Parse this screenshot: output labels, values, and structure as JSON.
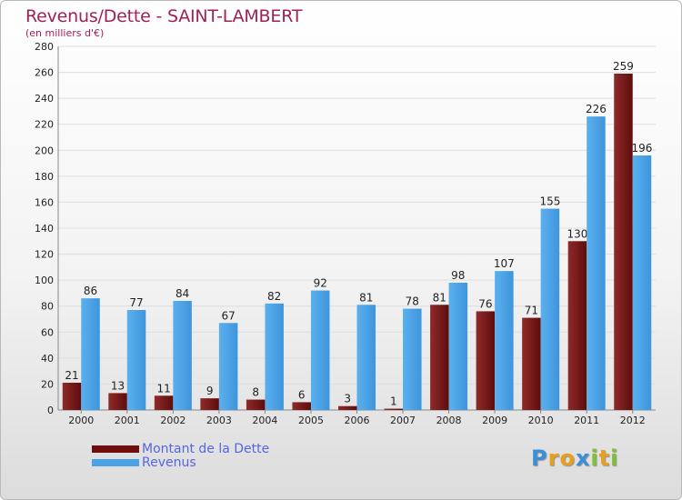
{
  "header": {
    "title": "Revenus/Dette - SAINT-LAMBERT",
    "subtitle": "(en milliers d'€)"
  },
  "chart_data": {
    "type": "bar",
    "title": "Revenus/Dette - SAINT-LAMBERT",
    "subtitle": "(en milliers d'€)",
    "categories": [
      "2000",
      "2001",
      "2002",
      "2003",
      "2004",
      "2005",
      "2006",
      "2007",
      "2008",
      "2009",
      "2010",
      "2011",
      "2012"
    ],
    "series": [
      {
        "name": "Montant de la Dette",
        "color": "#7a1c1c",
        "values": [
          21,
          13,
          11,
          9,
          8,
          6,
          3,
          1,
          81,
          76,
          71,
          130,
          259
        ]
      },
      {
        "name": "Revenus",
        "color": "#4aa3e6",
        "values": [
          86,
          77,
          84,
          67,
          82,
          92,
          81,
          78,
          98,
          107,
          155,
          226,
          196
        ]
      }
    ],
    "ylim": [
      0,
      280
    ],
    "yticks": [
      0,
      20,
      40,
      60,
      80,
      100,
      120,
      140,
      160,
      180,
      200,
      220,
      240,
      260,
      280
    ],
    "grid": true,
    "legend_position": "bottom-left"
  },
  "legend": {
    "items": [
      {
        "label": "Montant de la Dette",
        "color": "#6e0f0f"
      },
      {
        "label": "Revenus",
        "color": "#4aa3e6"
      }
    ]
  },
  "logo": {
    "letters": [
      "P",
      "r",
      "o",
      "x",
      "i",
      "t",
      "i"
    ],
    "colors": [
      "#3b8fd6",
      "#e6a01c",
      "#e6a01c",
      "#3b8fd6",
      "#7fbf3a",
      "#e6a01c",
      "#7fbf3a"
    ]
  }
}
